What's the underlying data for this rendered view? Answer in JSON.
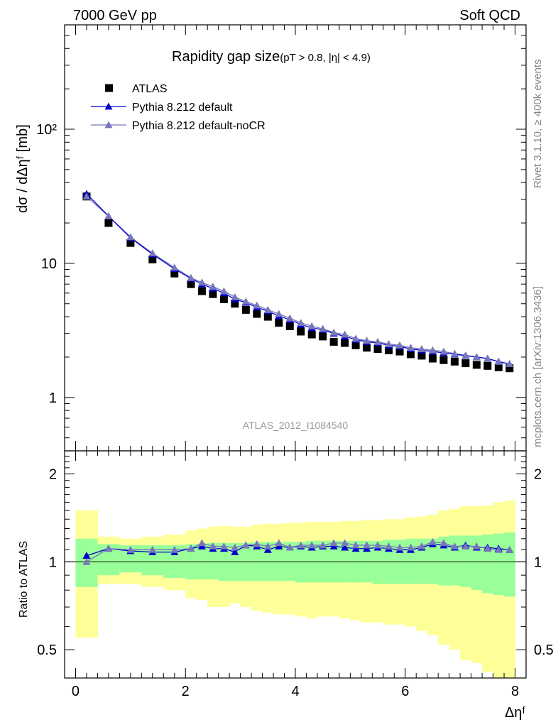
{
  "header": {
    "left": "7000 GeV pp",
    "right": "Soft QCD"
  },
  "side_labels": {
    "rivet": "Rivet 3.1.10, ≥ 400k events",
    "mcplots": "mcplots.cern.ch [arXiv:1306.3436]"
  },
  "title": {
    "main": "Rapidity gap size",
    "sub": "(pT > 0.8, |η| < 4.9)"
  },
  "analysis_label": "ATLAS_2012_I1084540",
  "axes": {
    "main_ylabel": "dσ / dΔηᶠ [mb]",
    "ratio_ylabel": "Ratio to ATLAS",
    "xlabel": "Δηᶠ",
    "main_yticks": [
      "1",
      "10",
      "10²"
    ],
    "ratio_yticks": [
      "0.5",
      "1",
      "2"
    ],
    "xticks": [
      "0",
      "2",
      "4",
      "6",
      "8"
    ]
  },
  "legend": [
    {
      "name": "ATLAS",
      "color": "#000000",
      "marker": "square"
    },
    {
      "name": "Pythia 8.212 default",
      "color": "#0000cc",
      "marker": "triangle"
    },
    {
      "name": "Pythia 8.212 default-noCR",
      "color": "#7777bb",
      "marker": "triangle"
    }
  ],
  "chart_data": {
    "type": "scatter",
    "xlim": [
      -0.2,
      8.2
    ],
    "ylim_main": [
      0.4,
      600
    ],
    "yscale_main": "log",
    "ylim_ratio": [
      0.4,
      2.4
    ],
    "yscale_ratio": "log",
    "x": [
      0.2,
      0.6,
      1.0,
      1.4,
      1.8,
      2.1,
      2.3,
      2.5,
      2.7,
      2.9,
      3.1,
      3.3,
      3.5,
      3.7,
      3.9,
      4.1,
      4.3,
      4.5,
      4.7,
      4.9,
      5.1,
      5.3,
      5.5,
      5.7,
      5.9,
      6.1,
      6.3,
      6.5,
      6.7,
      6.9,
      7.1,
      7.3,
      7.5,
      7.7,
      7.9
    ],
    "series": [
      {
        "name": "ATLAS",
        "values": [
          31.5,
          20.0,
          14.2,
          10.7,
          8.4,
          7.0,
          6.2,
          5.9,
          5.4,
          5.0,
          4.5,
          4.2,
          4.0,
          3.6,
          3.4,
          3.1,
          2.95,
          2.85,
          2.6,
          2.55,
          2.45,
          2.35,
          2.3,
          2.25,
          2.2,
          2.1,
          2.05,
          1.95,
          1.9,
          1.85,
          1.8,
          1.75,
          1.72,
          1.68,
          1.65
        ]
      },
      {
        "name": "Pythia 8.212 default",
        "values": [
          33.0,
          22.5,
          15.5,
          11.7,
          9.1,
          7.7,
          7.0,
          6.5,
          6.0,
          5.4,
          5.1,
          4.7,
          4.4,
          4.05,
          3.8,
          3.5,
          3.3,
          3.2,
          3.0,
          2.85,
          2.7,
          2.6,
          2.55,
          2.45,
          2.4,
          2.3,
          2.25,
          2.2,
          2.15,
          2.1,
          2.05,
          2.0,
          1.95,
          1.85,
          1.78
        ]
      },
      {
        "name": "Pythia 8.212 default-noCR",
        "values": [
          31.5,
          22.5,
          15.7,
          11.9,
          9.3,
          7.8,
          7.2,
          6.7,
          6.2,
          5.6,
          5.2,
          4.85,
          4.5,
          4.2,
          3.9,
          3.6,
          3.4,
          3.25,
          3.05,
          2.95,
          2.75,
          2.65,
          2.6,
          2.5,
          2.45,
          2.35,
          2.3,
          2.25,
          2.2,
          2.12,
          2.06,
          2.0,
          1.95,
          1.85,
          1.78
        ]
      }
    ],
    "ratio": {
      "bin_edges": [
        0.0,
        0.4,
        0.8,
        1.2,
        1.6,
        2.0,
        2.2,
        2.4,
        2.6,
        2.8,
        3.0,
        3.2,
        3.4,
        3.6,
        3.8,
        4.0,
        4.2,
        4.4,
        4.6,
        4.8,
        5.0,
        5.2,
        5.4,
        5.6,
        5.8,
        6.0,
        6.2,
        6.4,
        6.6,
        6.8,
        7.0,
        7.2,
        7.4,
        7.6,
        7.8,
        8.0
      ],
      "band_outer_low": [
        0.55,
        0.84,
        0.84,
        0.82,
        0.8,
        0.75,
        0.74,
        0.7,
        0.7,
        0.72,
        0.7,
        0.68,
        0.67,
        0.66,
        0.66,
        0.65,
        0.64,
        0.65,
        0.65,
        0.64,
        0.63,
        0.62,
        0.62,
        0.61,
        0.61,
        0.6,
        0.58,
        0.56,
        0.52,
        0.5,
        0.46,
        0.45,
        0.42,
        0.4,
        0.37
      ],
      "band_outer_high": [
        1.5,
        1.22,
        1.2,
        1.22,
        1.24,
        1.28,
        1.3,
        1.32,
        1.33,
        1.32,
        1.32,
        1.34,
        1.35,
        1.35,
        1.36,
        1.36,
        1.37,
        1.37,
        1.37,
        1.38,
        1.38,
        1.39,
        1.39,
        1.4,
        1.4,
        1.42,
        1.43,
        1.45,
        1.5,
        1.52,
        1.55,
        1.55,
        1.56,
        1.6,
        1.62
      ],
      "band_inner_low": [
        0.82,
        0.9,
        0.92,
        0.9,
        0.88,
        0.87,
        0.87,
        0.87,
        0.86,
        0.86,
        0.86,
        0.86,
        0.86,
        0.86,
        0.86,
        0.85,
        0.85,
        0.85,
        0.85,
        0.85,
        0.85,
        0.85,
        0.84,
        0.84,
        0.84,
        0.84,
        0.84,
        0.84,
        0.83,
        0.83,
        0.82,
        0.8,
        0.78,
        0.77,
        0.76
      ],
      "band_inner_high": [
        1.2,
        1.15,
        1.14,
        1.14,
        1.14,
        1.15,
        1.15,
        1.16,
        1.16,
        1.16,
        1.16,
        1.17,
        1.17,
        1.17,
        1.17,
        1.17,
        1.18,
        1.18,
        1.18,
        1.18,
        1.18,
        1.18,
        1.18,
        1.19,
        1.19,
        1.2,
        1.2,
        1.2,
        1.22,
        1.23,
        1.23,
        1.23,
        1.24,
        1.25,
        1.26
      ],
      "series": [
        {
          "name": "Pythia 8.212 default",
          "values": [
            1.05,
            1.11,
            1.09,
            1.08,
            1.08,
            1.11,
            1.13,
            1.11,
            1.11,
            1.08,
            1.14,
            1.13,
            1.1,
            1.13,
            1.12,
            1.13,
            1.12,
            1.13,
            1.13,
            1.12,
            1.11,
            1.11,
            1.12,
            1.11,
            1.1,
            1.1,
            1.12,
            1.15,
            1.14,
            1.12,
            1.14,
            1.12,
            1.12,
            1.11,
            1.1
          ]
        },
        {
          "name": "Pythia 8.212 default-noCR",
          "values": [
            1.0,
            1.11,
            1.1,
            1.1,
            1.1,
            1.11,
            1.16,
            1.13,
            1.13,
            1.12,
            1.14,
            1.15,
            1.13,
            1.16,
            1.12,
            1.14,
            1.14,
            1.14,
            1.16,
            1.16,
            1.14,
            1.14,
            1.14,
            1.13,
            1.12,
            1.12,
            1.13,
            1.17,
            1.16,
            1.13,
            1.13,
            1.13,
            1.11,
            1.1,
            1.1
          ]
        }
      ]
    }
  }
}
